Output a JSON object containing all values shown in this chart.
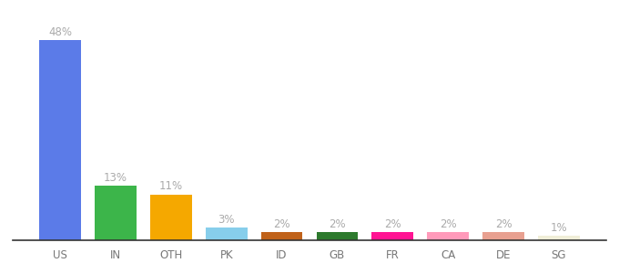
{
  "categories": [
    "US",
    "IN",
    "OTH",
    "PK",
    "ID",
    "GB",
    "FR",
    "CA",
    "DE",
    "SG"
  ],
  "values": [
    48,
    13,
    11,
    3,
    2,
    2,
    2,
    2,
    2,
    1
  ],
  "bar_colors": [
    "#5b7be8",
    "#3cb54a",
    "#f5a800",
    "#87ceeb",
    "#c0621a",
    "#2d7a2d",
    "#ff1493",
    "#ff9aba",
    "#e8a090",
    "#f0eed8"
  ],
  "title": "",
  "label_fontsize": 8.5,
  "tick_fontsize": 8.5,
  "label_color": "#aaaaaa",
  "tick_color": "#777777",
  "background_color": "#ffffff",
  "ylim": [
    0,
    53
  ],
  "bar_width": 0.75
}
